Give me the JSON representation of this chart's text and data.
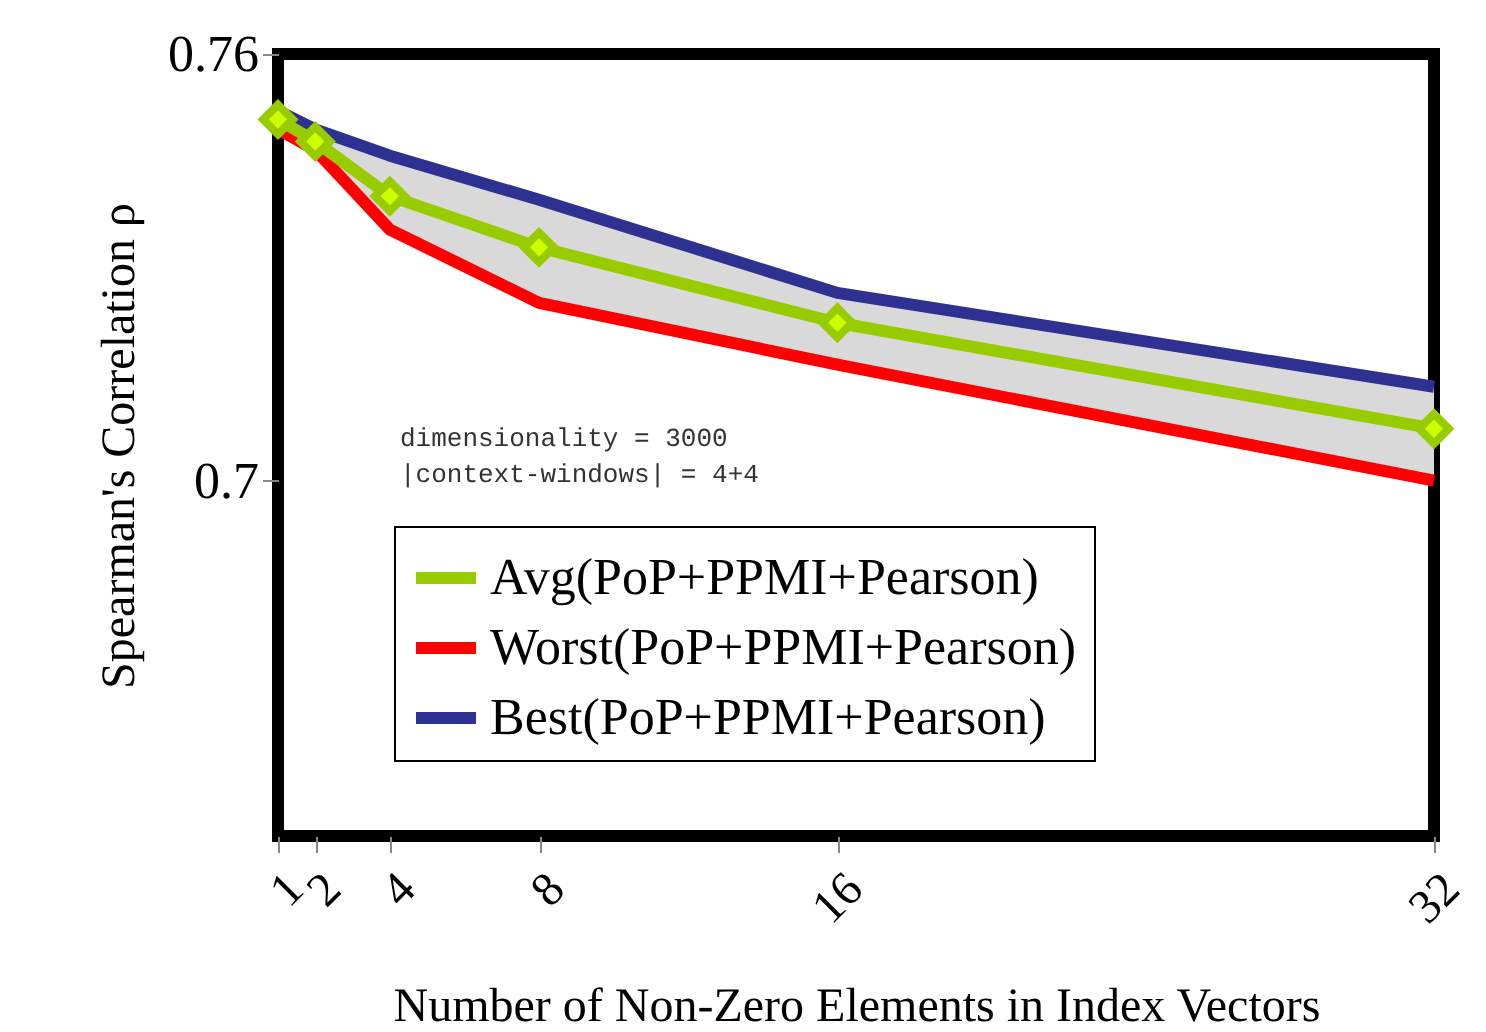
{
  "chart_data": {
    "type": "line",
    "xlabel": "Number of Non-Zero Elements in Index Vectors",
    "ylabel": "Spearman's Correlation ρ",
    "x": [
      1,
      2,
      4,
      8,
      16,
      32
    ],
    "series": [
      {
        "name": "Avg(PoP+PPMI+Pearson)",
        "color": "#99cc00",
        "marker": "diamond",
        "values": [
          0.7508,
          0.7477,
          0.74,
          0.7328,
          0.7222,
          0.7073
        ],
        "lower": [
          0.7494,
          0.7465,
          0.7353,
          0.725,
          0.7163,
          0.7
        ],
        "upper": [
          0.752,
          0.7494,
          0.7457,
          0.7395,
          0.7264,
          0.7132
        ]
      },
      {
        "name": "Worst(PoP+PPMI+Pearson)",
        "color": "#ff0000",
        "marker": "none",
        "values": [
          0.7494,
          0.7465,
          0.7353,
          0.725,
          0.7163,
          0.7
        ]
      },
      {
        "name": "Best(PoP+PPMI+Pearson)",
        "color": "#2e3192",
        "marker": "none",
        "values": [
          0.752,
          0.7494,
          0.7457,
          0.7395,
          0.7264,
          0.7132
        ]
      }
    ],
    "xlim": [
      1,
      32
    ],
    "ylim": [
      0.65,
      0.76
    ],
    "xticks": [
      1,
      2,
      4,
      8,
      16,
      32
    ],
    "yticks": [
      0.7,
      0.76
    ],
    "annotations": [
      "dimensionality = 3000",
      "|context-windows| = 4+4"
    ],
    "legend": "bottom",
    "grid": false
  }
}
